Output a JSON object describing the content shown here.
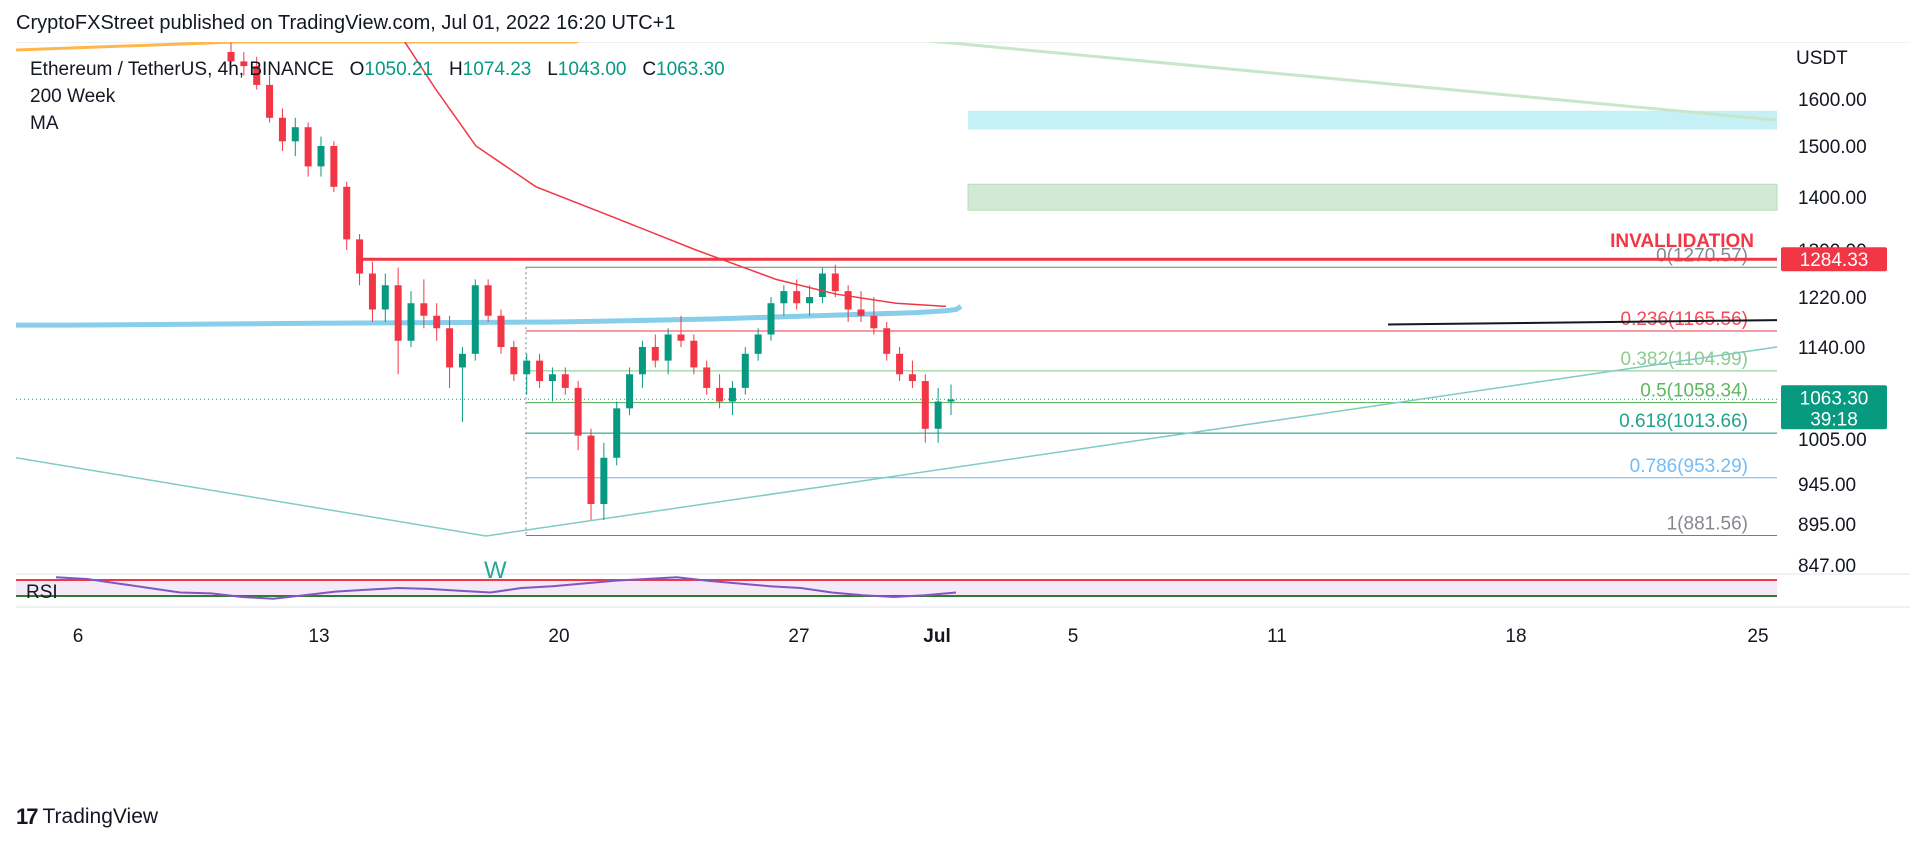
{
  "header": {
    "published_line": "CryptoFXStreet published on TradingView.com, Jul 01, 2022 16:20 UTC+1"
  },
  "legend": {
    "symbol": "Ethereum / TetherUS, 4h, BINANCE",
    "open_label": "O",
    "open": "1050.21",
    "high_label": "H",
    "high": "1074.23",
    "low_label": "L",
    "low": "1043.00",
    "close_label": "C",
    "close": "1063.30",
    "indicator_line1": "200 Week",
    "indicator_line2": "MA"
  },
  "footer": {
    "brand": "TradingView",
    "logo_mark": "17"
  },
  "colors": {
    "up": "#089981",
    "down": "#f23645",
    "ma200": "#f23645",
    "support_line": "#87ceeb",
    "rsi_line": "#7e57c2",
    "cyan_zone": "#b2ebf2",
    "green_zone": "#c8e6c9",
    "invalidation": "#f23645"
  },
  "chart_data": {
    "type": "candlestick",
    "y_axis_unit": "USDT",
    "y_ticks": [
      "1600.00",
      "1500.00",
      "1400.00",
      "1300.00",
      "1220.00",
      "1140.00",
      "1005.00",
      "945.00",
      "895.00",
      "847.00"
    ],
    "x_ticks": [
      "6",
      "13",
      "20",
      "27",
      "Jul",
      "5",
      "11",
      "18",
      "25"
    ],
    "last_price": "1063.30",
    "countdown": "39:18",
    "invalidation_label": "INVALLIDATION",
    "invalidation_price": "1284.33",
    "fib_levels": [
      {
        "ratio": "0",
        "price": 1270.57,
        "label": "0(1270.57)",
        "color": "#787b86"
      },
      {
        "ratio": "0.236",
        "price": 1165.56,
        "label": "0.236(1165.56)",
        "color": "#f23645"
      },
      {
        "ratio": "0.382",
        "price": 1104.99,
        "label": "0.382(1104.99)",
        "color": "#81c784"
      },
      {
        "ratio": "0.5",
        "price": 1058.34,
        "label": "0.5(1058.34)",
        "color": "#4caf50"
      },
      {
        "ratio": "0.618",
        "price": 1013.66,
        "label": "0.618(1013.66)",
        "color": "#089981"
      },
      {
        "ratio": "0.786",
        "price": 953.29,
        "label": "0.786(953.29)",
        "color": "#64b5f6"
      },
      {
        "ratio": "1",
        "price": 881.56,
        "label": "1(881.56)",
        "color": "#787b86"
      }
    ],
    "pattern_label": "W",
    "rsi_label": "RSI",
    "candles": [
      {
        "o": 1700,
        "h": 1720,
        "l": 1660,
        "c": 1680
      },
      {
        "o": 1680,
        "h": 1700,
        "l": 1650,
        "c": 1670
      },
      {
        "o": 1670,
        "h": 1690,
        "l": 1620,
        "c": 1630
      },
      {
        "o": 1630,
        "h": 1650,
        "l": 1550,
        "c": 1560
      },
      {
        "o": 1560,
        "h": 1580,
        "l": 1490,
        "c": 1510
      },
      {
        "o": 1510,
        "h": 1560,
        "l": 1480,
        "c": 1540
      },
      {
        "o": 1540,
        "h": 1550,
        "l": 1440,
        "c": 1460
      },
      {
        "o": 1460,
        "h": 1520,
        "l": 1440,
        "c": 1500
      },
      {
        "o": 1500,
        "h": 1510,
        "l": 1410,
        "c": 1420
      },
      {
        "o": 1420,
        "h": 1430,
        "l": 1300,
        "c": 1320
      },
      {
        "o": 1320,
        "h": 1330,
        "l": 1240,
        "c": 1260
      },
      {
        "o": 1260,
        "h": 1280,
        "l": 1180,
        "c": 1200
      },
      {
        "o": 1200,
        "h": 1260,
        "l": 1180,
        "c": 1240
      },
      {
        "o": 1240,
        "h": 1270,
        "l": 1100,
        "c": 1150
      },
      {
        "o": 1150,
        "h": 1230,
        "l": 1140,
        "c": 1210
      },
      {
        "o": 1210,
        "h": 1250,
        "l": 1170,
        "c": 1190
      },
      {
        "o": 1190,
        "h": 1210,
        "l": 1150,
        "c": 1170
      },
      {
        "o": 1170,
        "h": 1190,
        "l": 1080,
        "c": 1110
      },
      {
        "o": 1110,
        "h": 1140,
        "l": 1030,
        "c": 1130
      },
      {
        "o": 1130,
        "h": 1250,
        "l": 1120,
        "c": 1240
      },
      {
        "o": 1240,
        "h": 1250,
        "l": 1180,
        "c": 1190
      },
      {
        "o": 1190,
        "h": 1200,
        "l": 1130,
        "c": 1140
      },
      {
        "o": 1140,
        "h": 1150,
        "l": 1090,
        "c": 1100
      },
      {
        "o": 1100,
        "h": 1130,
        "l": 1070,
        "c": 1120
      },
      {
        "o": 1120,
        "h": 1130,
        "l": 1080,
        "c": 1090
      },
      {
        "o": 1090,
        "h": 1110,
        "l": 1060,
        "c": 1100
      },
      {
        "o": 1100,
        "h": 1110,
        "l": 1070,
        "c": 1080
      },
      {
        "o": 1080,
        "h": 1090,
        "l": 990,
        "c": 1010
      },
      {
        "o": 1010,
        "h": 1020,
        "l": 900,
        "c": 920
      },
      {
        "o": 920,
        "h": 1000,
        "l": 900,
        "c": 980
      },
      {
        "o": 980,
        "h": 1060,
        "l": 970,
        "c": 1050
      },
      {
        "o": 1050,
        "h": 1110,
        "l": 1040,
        "c": 1100
      },
      {
        "o": 1100,
        "h": 1150,
        "l": 1080,
        "c": 1140
      },
      {
        "o": 1140,
        "h": 1160,
        "l": 1110,
        "c": 1120
      },
      {
        "o": 1120,
        "h": 1170,
        "l": 1100,
        "c": 1160
      },
      {
        "o": 1160,
        "h": 1190,
        "l": 1140,
        "c": 1150
      },
      {
        "o": 1150,
        "h": 1160,
        "l": 1100,
        "c": 1110
      },
      {
        "o": 1110,
        "h": 1120,
        "l": 1070,
        "c": 1080
      },
      {
        "o": 1080,
        "h": 1100,
        "l": 1050,
        "c": 1060
      },
      {
        "o": 1060,
        "h": 1090,
        "l": 1040,
        "c": 1080
      },
      {
        "o": 1080,
        "h": 1140,
        "l": 1070,
        "c": 1130
      },
      {
        "o": 1130,
        "h": 1170,
        "l": 1120,
        "c": 1160
      },
      {
        "o": 1160,
        "h": 1220,
        "l": 1150,
        "c": 1210
      },
      {
        "o": 1210,
        "h": 1240,
        "l": 1190,
        "c": 1230
      },
      {
        "o": 1230,
        "h": 1250,
        "l": 1200,
        "c": 1210
      },
      {
        "o": 1210,
        "h": 1240,
        "l": 1190,
        "c": 1220
      },
      {
        "o": 1220,
        "h": 1270,
        "l": 1210,
        "c": 1260
      },
      {
        "o": 1260,
        "h": 1275,
        "l": 1220,
        "c": 1230
      },
      {
        "o": 1230,
        "h": 1240,
        "l": 1180,
        "c": 1200
      },
      {
        "o": 1200,
        "h": 1230,
        "l": 1180,
        "c": 1190
      },
      {
        "o": 1190,
        "h": 1220,
        "l": 1160,
        "c": 1170
      },
      {
        "o": 1170,
        "h": 1180,
        "l": 1120,
        "c": 1130
      },
      {
        "o": 1130,
        "h": 1140,
        "l": 1090,
        "c": 1100
      },
      {
        "o": 1100,
        "h": 1120,
        "l": 1080,
        "c": 1090
      },
      {
        "o": 1090,
        "h": 1100,
        "l": 1000,
        "c": 1020
      },
      {
        "o": 1020,
        "h": 1080,
        "l": 1000,
        "c": 1060
      },
      {
        "o": 1060,
        "h": 1085,
        "l": 1040,
        "c": 1063
      }
    ],
    "ma200": [
      1900,
      1750,
      1620,
      1500,
      1420,
      1360,
      1300,
      1250,
      1225,
      1210,
      1205
    ],
    "support_ma": [
      1175,
      1175,
      1178,
      1180,
      1182,
      1185,
      1190,
      1195,
      1198,
      1200,
      1205
    ],
    "rsi": [
      62,
      60,
      55,
      50,
      45,
      44,
      40,
      38,
      42,
      46,
      48,
      50,
      49,
      47,
      45,
      50,
      52,
      55,
      58,
      60,
      62,
      58,
      55,
      52,
      50,
      45,
      42,
      40,
      42,
      45
    ]
  }
}
